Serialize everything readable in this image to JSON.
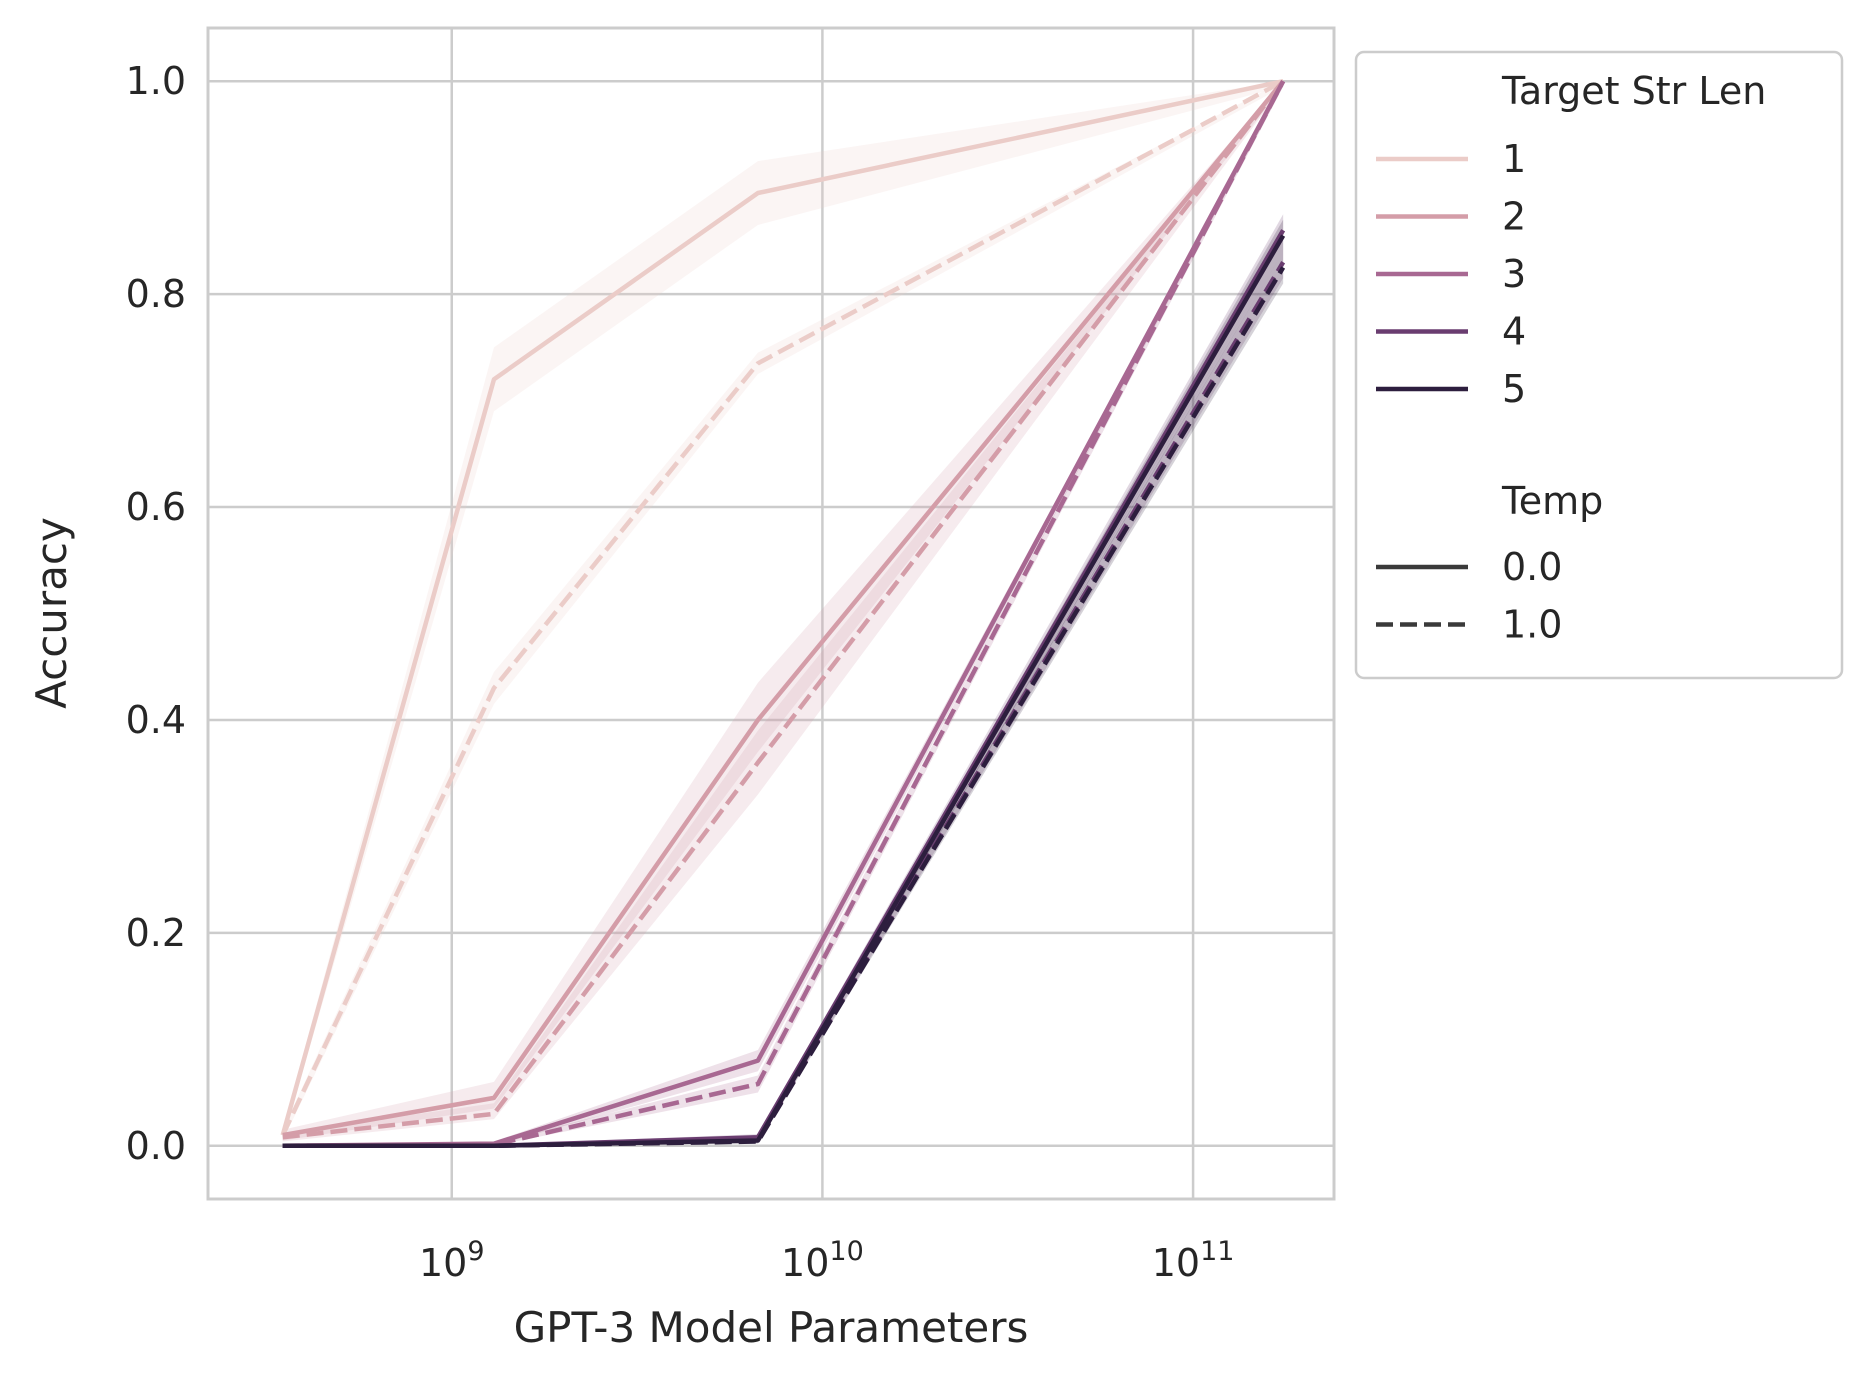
{
  "chart_data": {
    "type": "line",
    "xlabel": "GPT-3 Model Parameters",
    "ylabel": "Accuracy",
    "xscale": "log",
    "xlim": [
      220000000,
      240000000000
    ],
    "ylim": [
      -0.05,
      1.05
    ],
    "grid": true,
    "x_ticks": [
      {
        "value": 1000000000,
        "base": "10",
        "exp": "9"
      },
      {
        "value": 10000000000,
        "base": "10",
        "exp": "10"
      },
      {
        "value": 100000000000,
        "base": "10",
        "exp": "11"
      }
    ],
    "y_ticks": [
      {
        "value": 0.0,
        "label": "0.0"
      },
      {
        "value": 0.2,
        "label": "0.2"
      },
      {
        "value": 0.4,
        "label": "0.4"
      },
      {
        "value": 0.6,
        "label": "0.6"
      },
      {
        "value": 0.8,
        "label": "0.8"
      },
      {
        "value": 1.0,
        "label": "1.0"
      }
    ],
    "x": [
      350000000,
      1300000000,
      6700000000,
      175000000000
    ],
    "legend": {
      "placement": "outside-right",
      "hue_title": "Target Str Len",
      "style_title": "Temp",
      "hue_entries": [
        "1",
        "2",
        "3",
        "4",
        "5"
      ],
      "style_entries": [
        {
          "label": "0.0",
          "dash": "solid"
        },
        {
          "label": "1.0",
          "dash": "dashed"
        }
      ]
    },
    "colors": {
      "1": "#ebccc8",
      "2": "#d49da8",
      "3": "#a86892",
      "4": "#6a3d70",
      "5": "#2d1e3e"
    },
    "series": [
      {
        "target_str_len": "1",
        "temp": "0.0",
        "values": [
          0.01,
          0.72,
          0.895,
          1.0
        ],
        "lower": [
          0.005,
          0.69,
          0.865,
          0.995
        ],
        "upper": [
          0.015,
          0.75,
          0.925,
          1.0
        ]
      },
      {
        "target_str_len": "1",
        "temp": "1.0",
        "values": [
          0.01,
          0.43,
          0.735,
          1.0
        ],
        "lower": [
          0.005,
          0.415,
          0.725,
          0.995
        ],
        "upper": [
          0.015,
          0.445,
          0.745,
          1.0
        ]
      },
      {
        "target_str_len": "2",
        "temp": "0.0",
        "values": [
          0.01,
          0.045,
          0.4,
          1.0
        ],
        "lower": [
          0.005,
          0.035,
          0.37,
          0.995
        ],
        "upper": [
          0.015,
          0.06,
          0.435,
          1.0
        ]
      },
      {
        "target_str_len": "2",
        "temp": "1.0",
        "values": [
          0.008,
          0.03,
          0.36,
          1.0
        ],
        "lower": [
          0.004,
          0.025,
          0.33,
          0.995
        ],
        "upper": [
          0.012,
          0.04,
          0.39,
          1.0
        ]
      },
      {
        "target_str_len": "3",
        "temp": "0.0",
        "values": [
          0.0,
          0.002,
          0.08,
          1.0
        ],
        "lower": [
          0.0,
          0.0,
          0.07,
          0.995
        ],
        "upper": [
          0.001,
          0.004,
          0.09,
          1.0
        ]
      },
      {
        "target_str_len": "3",
        "temp": "1.0",
        "values": [
          0.0,
          0.001,
          0.058,
          1.0
        ],
        "lower": [
          0.0,
          0.0,
          0.05,
          0.995
        ],
        "upper": [
          0.001,
          0.003,
          0.066,
          1.0
        ]
      },
      {
        "target_str_len": "4",
        "temp": "0.0",
        "values": [
          0.0,
          0.0,
          0.008,
          0.86
        ],
        "lower": [
          0.0,
          0.0,
          0.005,
          0.845
        ],
        "upper": [
          0.0,
          0.001,
          0.011,
          0.875
        ]
      },
      {
        "target_str_len": "4",
        "temp": "1.0",
        "values": [
          0.0,
          0.0,
          0.005,
          0.83
        ],
        "lower": [
          0.0,
          0.0,
          0.003,
          0.815
        ],
        "upper": [
          0.0,
          0.001,
          0.007,
          0.845
        ]
      },
      {
        "target_str_len": "5",
        "temp": "0.0",
        "values": [
          0.0,
          0.0,
          0.005,
          0.855
        ],
        "lower": [
          0.0,
          0.0,
          0.003,
          0.84
        ],
        "upper": [
          0.0,
          0.001,
          0.007,
          0.87
        ]
      },
      {
        "target_str_len": "5",
        "temp": "1.0",
        "values": [
          0.0,
          0.0,
          0.004,
          0.825
        ],
        "lower": [
          0.0,
          0.0,
          0.002,
          0.81
        ],
        "upper": [
          0.0,
          0.001,
          0.006,
          0.84
        ]
      }
    ]
  }
}
